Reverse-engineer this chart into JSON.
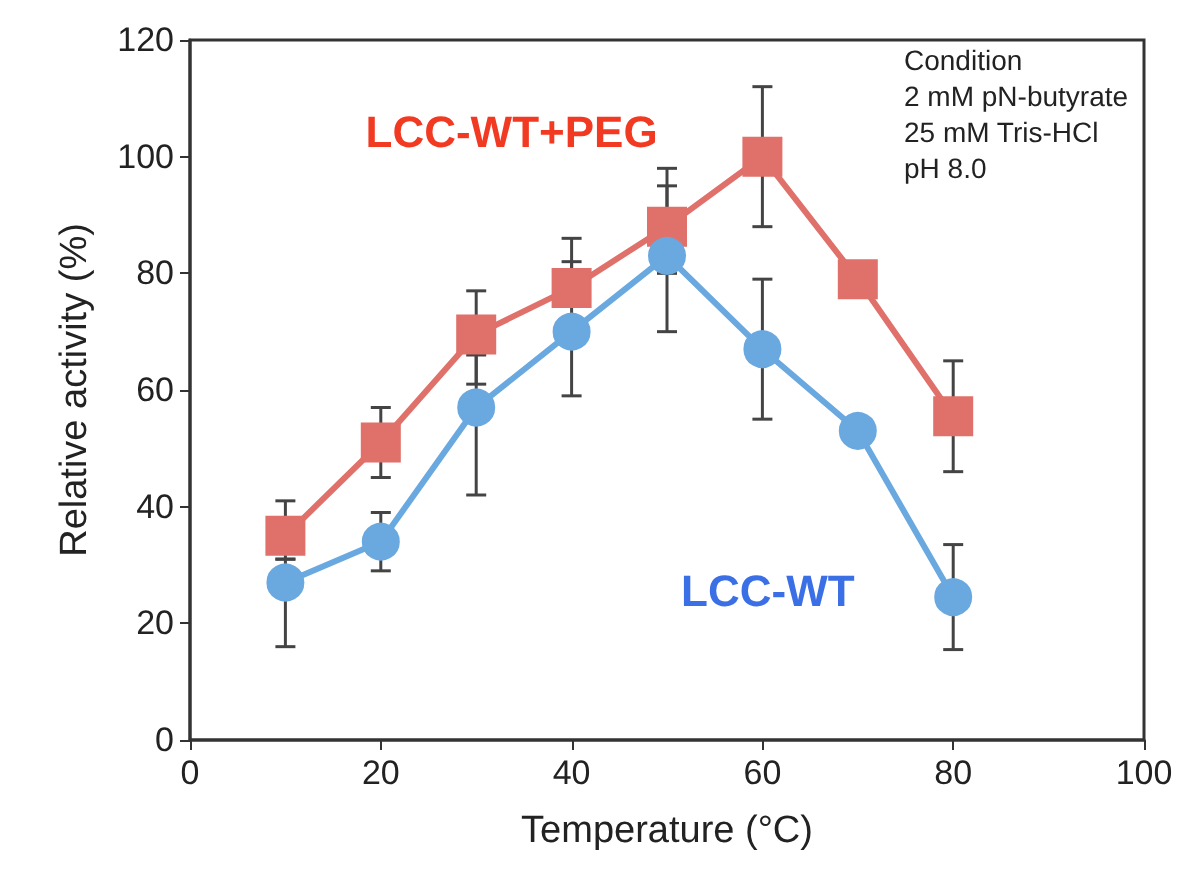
{
  "chart_data": {
    "type": "line",
    "xlabel": "Temperature (°C)",
    "ylabel": "Relative activity (%)",
    "x": [
      10,
      20,
      30,
      40,
      50,
      60,
      70,
      80
    ],
    "series": [
      {
        "name": "LCC-WT+PEG",
        "color": "#e0706a",
        "values": [
          35,
          51,
          69.5,
          77.5,
          88,
          100,
          79,
          55.5
        ],
        "errors": [
          [
            31,
            41
          ],
          [
            45,
            57
          ],
          [
            61,
            77
          ],
          [
            77.5,
            86
          ],
          [
            80,
            98
          ],
          [
            88,
            112
          ],
          null,
          [
            46,
            65
          ]
        ]
      },
      {
        "name": "LCC-WT",
        "color": "#6aa8e0",
        "values": [
          27,
          34,
          57,
          70,
          83,
          67,
          53,
          24.5
        ],
        "errors": [
          [
            16,
            31
          ],
          [
            29,
            39
          ],
          [
            42,
            66
          ],
          [
            59,
            82
          ],
          [
            70,
            95
          ],
          [
            55,
            79
          ],
          null,
          [
            15.5,
            33.5
          ]
        ]
      }
    ],
    "annotations": [
      "Condition",
      "2 mM pN-butyrate",
      "25 mM Tris-HCl",
      "pH 8.0"
    ],
    "xlim": [
      0,
      100
    ],
    "xticks": [
      0,
      20,
      40,
      60,
      80,
      100
    ],
    "ylim": [
      0,
      120
    ],
    "yticks": [
      0,
      20,
      40,
      60,
      80,
      100,
      120
    ],
    "grid": false,
    "legend": false,
    "marker": [
      "square",
      "circle"
    ],
    "line_style": "solid"
  }
}
